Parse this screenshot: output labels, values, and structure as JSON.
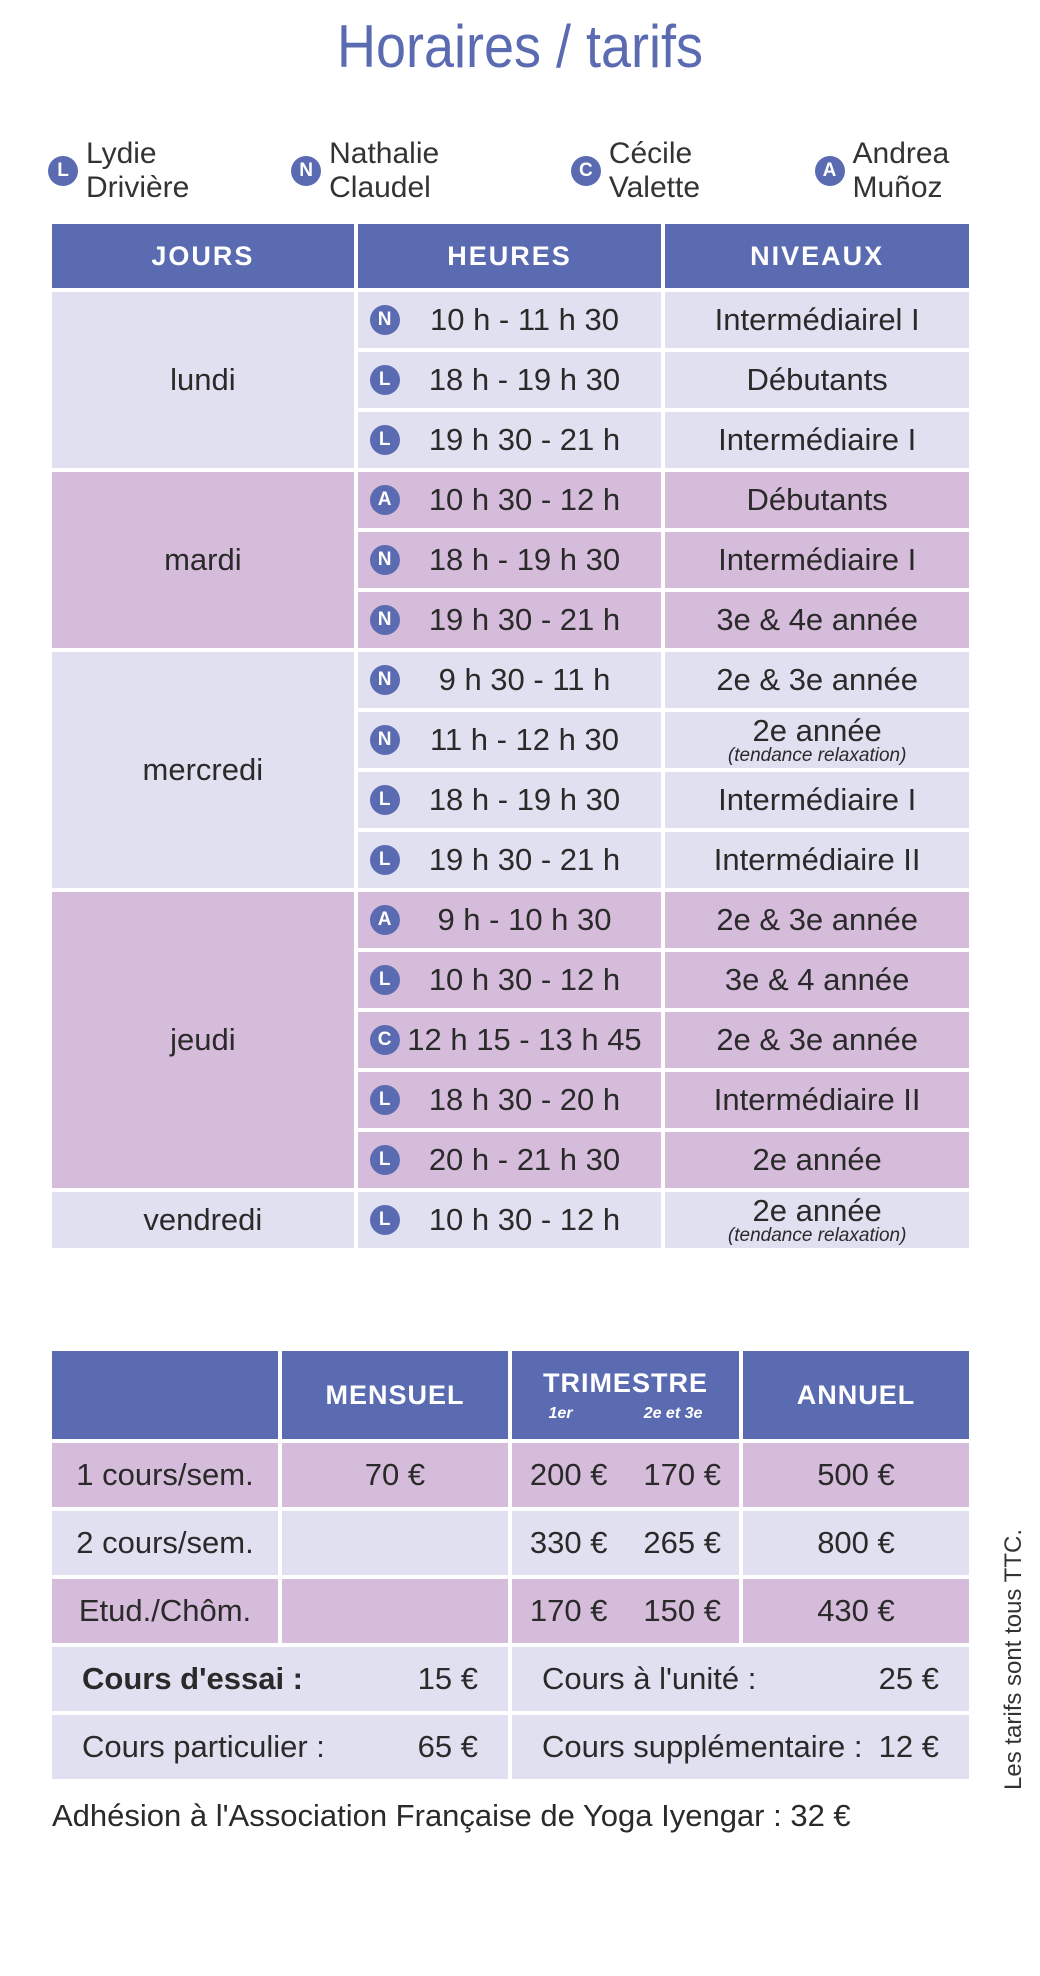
{
  "title": "Horaires / tarifs",
  "legend": [
    {
      "code": "L",
      "name": "Lydie Drivière"
    },
    {
      "code": "N",
      "name": "Nathalie Claudel"
    },
    {
      "code": "C",
      "name": "Cécile Valette"
    },
    {
      "code": "A",
      "name": "Andrea Muñoz"
    }
  ],
  "schedule": {
    "headers": [
      "JOURS",
      "HEURES",
      "NIVEAUX"
    ],
    "days": [
      {
        "day": "lundi",
        "tone": "light",
        "rows": [
          {
            "code": "N",
            "hours": "10 h - 11 h 30",
            "level": "Intermédiairel  I",
            "note": ""
          },
          {
            "code": "L",
            "hours": "18 h - 19 h 30",
            "level": "Débutants",
            "note": ""
          },
          {
            "code": "L",
            "hours": "19 h 30 - 21 h",
            "level": "Intermédiaire  I",
            "note": ""
          }
        ]
      },
      {
        "day": "mardi",
        "tone": "pink",
        "rows": [
          {
            "code": "A",
            "hours": "10 h 30 - 12 h",
            "level": "Débutants",
            "note": ""
          },
          {
            "code": "N",
            "hours": "18 h - 19 h 30",
            "level": "Intermédiaire  I",
            "note": ""
          },
          {
            "code": "N",
            "hours": "19 h 30 - 21 h",
            "level": "3e & 4e année",
            "note": ""
          }
        ]
      },
      {
        "day": "mercredi",
        "tone": "light",
        "rows": [
          {
            "code": "N",
            "hours": "9 h 30 - 11 h",
            "level": "2e & 3e  année",
            "note": ""
          },
          {
            "code": "N",
            "hours": "11 h - 12 h 30",
            "level": "2e année",
            "note": "(tendance relaxation)"
          },
          {
            "code": "L",
            "hours": "18 h - 19 h 30",
            "level": "Intermédiaire  I",
            "note": ""
          },
          {
            "code": "L",
            "hours": "19 h 30 - 21 h",
            "level": "Intermédiaire  II",
            "note": ""
          }
        ]
      },
      {
        "day": "jeudi",
        "tone": "pink",
        "rows": [
          {
            "code": "A",
            "hours": "9 h - 10 h 30",
            "level": "2e & 3e année",
            "note": ""
          },
          {
            "code": "L",
            "hours": "10 h 30 - 12 h",
            "level": "3e & 4  année",
            "note": ""
          },
          {
            "code": "C",
            "hours": "12 h 15 - 13 h 45",
            "level": "2e & 3e année",
            "note": ""
          },
          {
            "code": "L",
            "hours": "18 h 30 - 20 h",
            "level": "Intermédiaire  II",
            "note": ""
          },
          {
            "code": "L",
            "hours": "20 h - 21 h 30",
            "level": "2e année",
            "note": ""
          }
        ]
      },
      {
        "day": "vendredi",
        "tone": "light",
        "rows": [
          {
            "code": "L",
            "hours": "10 h 30 - 12 h",
            "level": "2e année",
            "note": "(tendance relaxation)"
          }
        ]
      }
    ]
  },
  "tarifs": {
    "headers": {
      "mensuel": "MENSUEL",
      "trimestre": "TRIMESTRE",
      "trimestre_sub1": "1er",
      "trimestre_sub2": "2e et 3e",
      "annuel": "ANNUEL"
    },
    "rows": [
      {
        "label": "1 cours/sem.",
        "mensuel": "70 €",
        "trim1": "200 €",
        "trim23": "170 €",
        "annuel": "500 €",
        "tone": "pink"
      },
      {
        "label": "2 cours/sem.",
        "mensuel": "",
        "trim1": "330 €",
        "trim23": "265 €",
        "annuel": "800 €",
        "tone": "light"
      },
      {
        "label": "Etud./Chôm.",
        "mensuel": "",
        "trim1": "170 €",
        "trim23": "150 €",
        "annuel": "430 €",
        "tone": "pink"
      }
    ],
    "extras": [
      {
        "left_label": "Cours d'essai :",
        "left_price": "15 €",
        "right_label": "Cours à l'unité :",
        "right_price": "25 €"
      },
      {
        "left_label": "Cours particulier :",
        "left_price": "65 €",
        "right_label": "Cours supplémentaire :",
        "right_price": "12 €"
      }
    ]
  },
  "side_note": "Les tarifs sont tous TTC.",
  "adhesion": "Adhésion à l'Association Française de Yoga Iyengar : 32 €",
  "colors": {
    "accent": "#5b6bb2",
    "row_light": "#e1e0f0",
    "row_pink": "#d6bcdb"
  }
}
